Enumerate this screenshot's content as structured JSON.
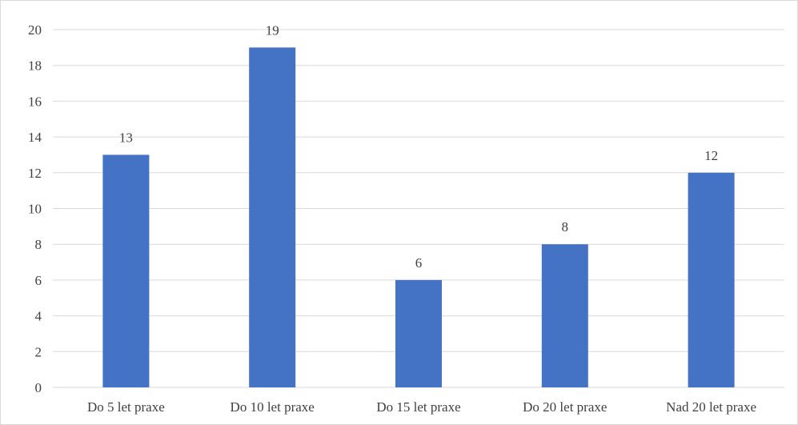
{
  "chart_data": {
    "type": "bar",
    "categories": [
      "Do 5 let praxe",
      "Do 10 let praxe",
      "Do 15 let praxe",
      "Do 20 let praxe",
      "Nad 20 let praxe"
    ],
    "values": [
      13,
      19,
      6,
      8,
      12
    ],
    "title": "",
    "xlabel": "",
    "ylabel": "",
    "ylim": [
      0,
      20
    ],
    "yticks": [
      0,
      2,
      4,
      6,
      8,
      10,
      12,
      14,
      16,
      18,
      20
    ],
    "grid": true,
    "data_labels": true,
    "legend": "none",
    "colors": {
      "bar": "#4472C4",
      "grid": "#D9D9D9",
      "text": "#404040",
      "frame": "#D9D9D9"
    }
  }
}
